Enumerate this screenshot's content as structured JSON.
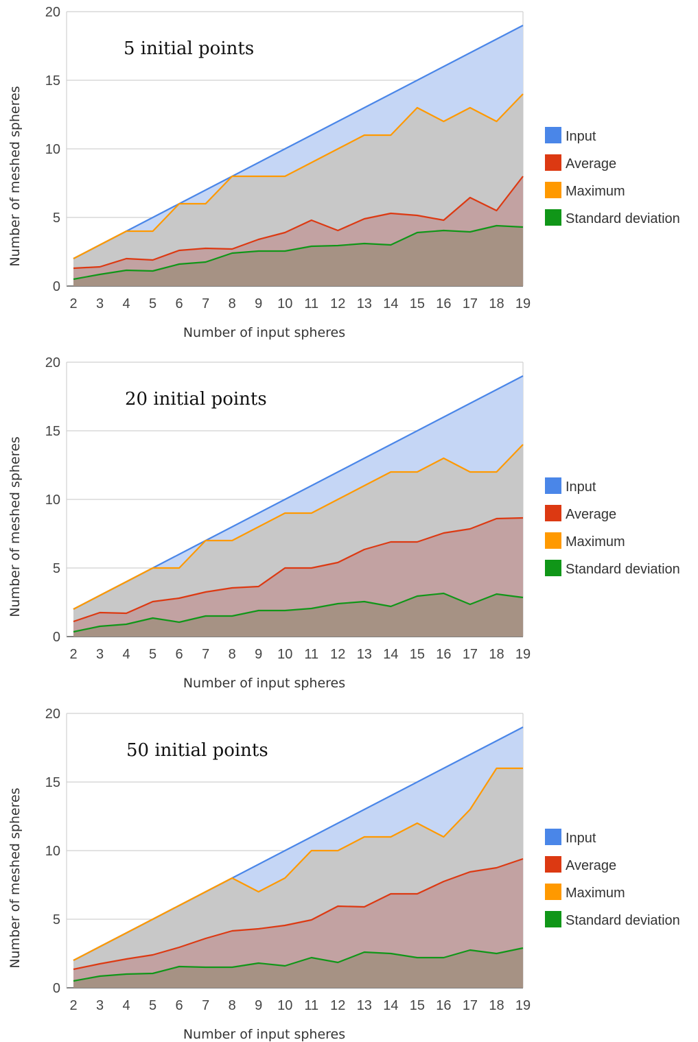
{
  "chart_data": [
    {
      "type": "area",
      "title": "5 initial points",
      "xlabel": "Number of input spheres",
      "ylabel": "Number of meshed spheres",
      "ylim": [
        0,
        20
      ],
      "yticks": [
        0,
        5,
        10,
        15,
        20
      ],
      "categories": [
        "2",
        "3",
        "4",
        "5",
        "6",
        "7",
        "8",
        "9",
        "10",
        "11",
        "12",
        "13",
        "14",
        "15",
        "16",
        "17",
        "18",
        "19"
      ],
      "legend_position": "right",
      "grid": true,
      "series": [
        {
          "name": "Input",
          "color": "#4a86e8",
          "fill": "#c5d6f5",
          "values": [
            2,
            3,
            4,
            5,
            6,
            7,
            8,
            9,
            10,
            11,
            12,
            13,
            14,
            15,
            16,
            17,
            18,
            19
          ]
        },
        {
          "name": "Average",
          "color": "#dc3912",
          "fill": "#c2a2a2",
          "values": [
            1.3,
            1.4,
            2.0,
            1.9,
            2.6,
            2.75,
            2.7,
            3.4,
            3.9,
            4.8,
            4.05,
            4.9,
            5.3,
            5.15,
            4.8,
            6.45,
            5.5,
            8.0
          ]
        },
        {
          "name": "Maximum",
          "color": "#ff9900",
          "fill": "#c8c8c8",
          "values": [
            2,
            3,
            4,
            4,
            6,
            6,
            8,
            8,
            8,
            9,
            10,
            11,
            11,
            13,
            12,
            13,
            12,
            14
          ]
        },
        {
          "name": "Standard deviation",
          "color": "#109618",
          "fill": "#a69284",
          "values": [
            0.5,
            0.85,
            1.15,
            1.1,
            1.6,
            1.75,
            2.4,
            2.55,
            2.55,
            2.9,
            2.95,
            3.1,
            3.0,
            3.9,
            4.05,
            3.95,
            4.4,
            4.3
          ]
        }
      ]
    },
    {
      "type": "area",
      "title": "20 initial points",
      "xlabel": "Number of input spheres",
      "ylabel": "Number of meshed spheres",
      "ylim": [
        0,
        20
      ],
      "yticks": [
        0,
        5,
        10,
        15,
        20
      ],
      "categories": [
        "2",
        "3",
        "4",
        "5",
        "6",
        "7",
        "8",
        "9",
        "10",
        "11",
        "12",
        "13",
        "14",
        "15",
        "16",
        "17",
        "18",
        "19"
      ],
      "legend_position": "right",
      "grid": true,
      "series": [
        {
          "name": "Input",
          "color": "#4a86e8",
          "fill": "#c5d6f5",
          "values": [
            2,
            3,
            4,
            5,
            6,
            7,
            8,
            9,
            10,
            11,
            12,
            13,
            14,
            15,
            16,
            17,
            18,
            19
          ]
        },
        {
          "name": "Average",
          "color": "#dc3912",
          "fill": "#c2a2a2",
          "values": [
            1.1,
            1.75,
            1.7,
            2.55,
            2.8,
            3.25,
            3.55,
            3.65,
            5.0,
            5.0,
            5.4,
            6.35,
            6.9,
            6.9,
            7.55,
            7.85,
            8.6,
            8.65
          ]
        },
        {
          "name": "Maximum",
          "color": "#ff9900",
          "fill": "#c8c8c8",
          "values": [
            2,
            3,
            4,
            5,
            5,
            7,
            7,
            8,
            9,
            9,
            10,
            11,
            12,
            12,
            13,
            12,
            12,
            14
          ]
        },
        {
          "name": "Standard deviation",
          "color": "#109618",
          "fill": "#a69284",
          "values": [
            0.35,
            0.75,
            0.9,
            1.35,
            1.05,
            1.5,
            1.5,
            1.9,
            1.9,
            2.05,
            2.4,
            2.55,
            2.2,
            2.95,
            3.15,
            2.35,
            3.1,
            2.85
          ]
        }
      ]
    },
    {
      "type": "area",
      "title": "50 initial points",
      "xlabel": "Number of input spheres",
      "ylabel": "Number of meshed spheres",
      "ylim": [
        0,
        20
      ],
      "yticks": [
        0,
        5,
        10,
        15,
        20
      ],
      "categories": [
        "2",
        "3",
        "4",
        "5",
        "6",
        "7",
        "8",
        "9",
        "10",
        "11",
        "12",
        "13",
        "14",
        "15",
        "16",
        "17",
        "18",
        "19"
      ],
      "legend_position": "right",
      "grid": true,
      "series": [
        {
          "name": "Input",
          "color": "#4a86e8",
          "fill": "#c5d6f5",
          "values": [
            2,
            3,
            4,
            5,
            6,
            7,
            8,
            9,
            10,
            11,
            12,
            13,
            14,
            15,
            16,
            17,
            18,
            19
          ]
        },
        {
          "name": "Average",
          "color": "#dc3912",
          "fill": "#c2a2a2",
          "values": [
            1.35,
            1.75,
            2.1,
            2.4,
            2.95,
            3.6,
            4.15,
            4.3,
            4.55,
            4.95,
            5.95,
            5.9,
            6.85,
            6.85,
            7.75,
            8.45,
            8.75,
            9.4
          ]
        },
        {
          "name": "Maximum",
          "color": "#ff9900",
          "fill": "#c8c8c8",
          "values": [
            2,
            3,
            4,
            5,
            6,
            7,
            8,
            7,
            8,
            10,
            10,
            11,
            11,
            12,
            11,
            13,
            16,
            16
          ]
        },
        {
          "name": "Standard deviation",
          "color": "#109618",
          "fill": "#a69284",
          "values": [
            0.5,
            0.85,
            1.0,
            1.05,
            1.55,
            1.5,
            1.5,
            1.8,
            1.6,
            2.2,
            1.85,
            2.6,
            2.5,
            2.2,
            2.2,
            2.75,
            2.5,
            2.9
          ]
        }
      ]
    }
  ]
}
